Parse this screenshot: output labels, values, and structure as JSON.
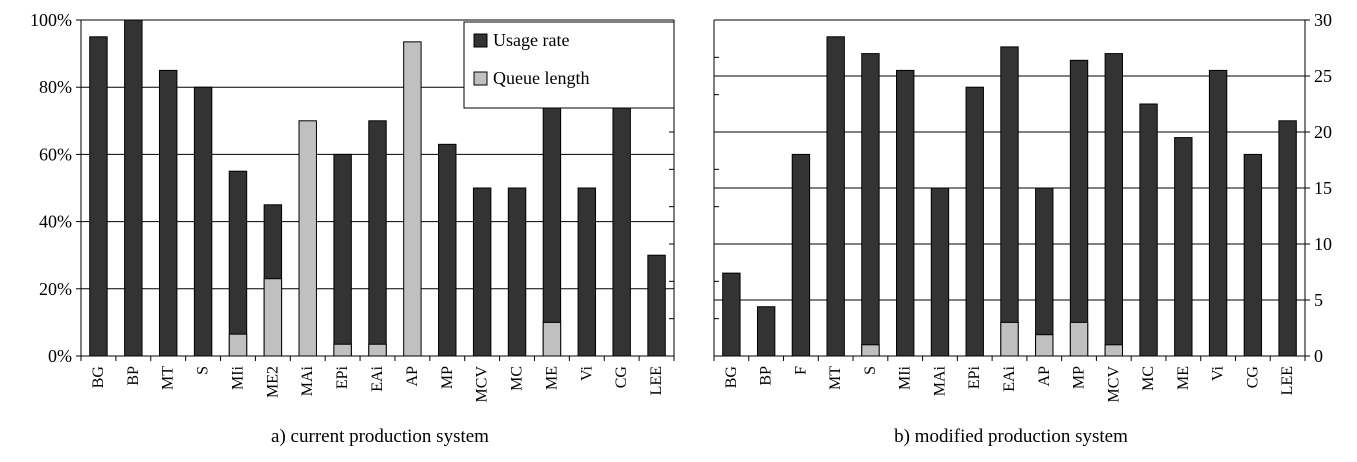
{
  "colors": {
    "usage": "#333333",
    "queue": "#c0c0c0",
    "grid": "#000000"
  },
  "legend": {
    "usage_label": "Usage rate",
    "queue_label": "Queue length"
  },
  "chart_data": [
    {
      "type": "bar",
      "caption": "a) current production system",
      "stacked_overlay": true,
      "axis_side": "left",
      "yticks": [
        "0%",
        "20%",
        "40%",
        "60%",
        "80%",
        "100%"
      ],
      "ylim": [
        0,
        100
      ],
      "grid": true,
      "legend_position": "top-right",
      "categories": [
        "BG",
        "BP",
        "MT",
        "S",
        "MIi",
        "ME2",
        "MAi",
        "EPi",
        "EAi",
        "AP",
        "MP",
        "MCV",
        "MC",
        "ME",
        "Vi",
        "CG",
        "LEE"
      ],
      "series": [
        {
          "name": "Usage rate",
          "values": [
            95,
            100,
            85,
            80,
            55,
            45,
            0,
            60,
            70,
            0,
            63,
            50,
            50,
            76,
            50,
            76,
            30
          ]
        },
        {
          "name": "Queue length",
          "values": [
            0,
            0,
            0,
            0,
            6.5,
            23,
            70,
            3.5,
            3.5,
            93.5,
            0,
            0,
            0,
            10,
            0,
            0,
            0
          ]
        }
      ]
    },
    {
      "type": "bar",
      "caption": "b) modified production system",
      "stacked_overlay": true,
      "axis_side": "right",
      "yticks": [
        "0",
        "5",
        "10",
        "15",
        "20",
        "25",
        "30"
      ],
      "ylim": [
        0,
        30
      ],
      "grid": true,
      "categories": [
        "BG",
        "BP",
        "F",
        "MT",
        "S",
        "MIi",
        "MAi",
        "EPi",
        "EAi",
        "AP",
        "MP",
        "MCV",
        "MC",
        "ME",
        "Vi",
        "CG",
        "LEE"
      ],
      "series": [
        {
          "name": "Usage rate",
          "values": [
            7.4,
            4.4,
            18,
            28.5,
            27,
            25.5,
            15,
            24,
            27.6,
            15,
            26.4,
            27,
            22.5,
            19.5,
            25.5,
            18,
            21
          ]
        },
        {
          "name": "Queue length",
          "values": [
            0,
            0,
            0,
            0,
            1,
            0,
            0,
            0,
            3,
            1.9,
            3,
            1,
            0,
            0,
            0,
            0,
            0
          ]
        }
      ]
    }
  ]
}
